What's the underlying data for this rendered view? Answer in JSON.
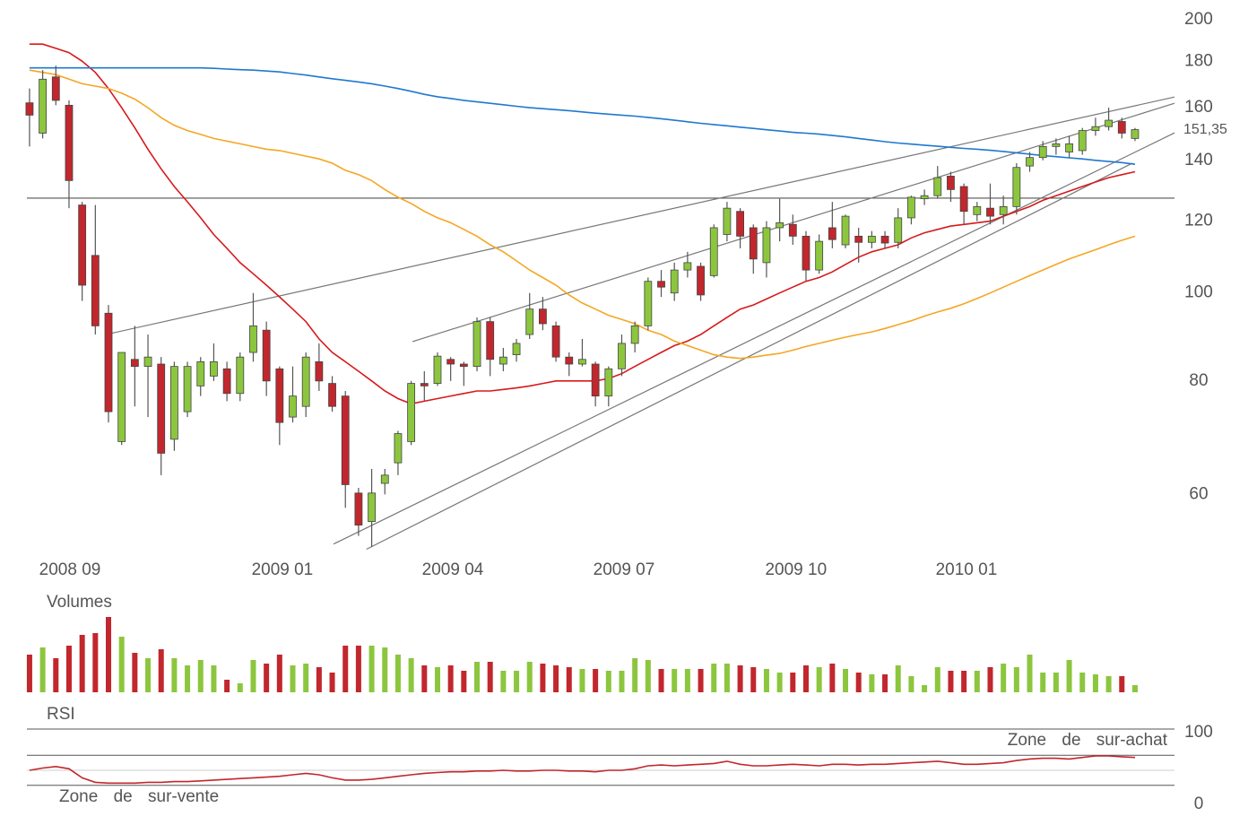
{
  "chart_data": [
    {
      "type": "candlestick",
      "log_scale": true,
      "grid": false,
      "up_color": "#8cc63e",
      "down_color": "#c1272d",
      "open": [
        162,
        150,
        173,
        161,
        125,
        110,
        95,
        68.6,
        84.5,
        83,
        83.5,
        69,
        74,
        79,
        81,
        82.5,
        77.5,
        86,
        91,
        82.5,
        73,
        75,
        84,
        79.5,
        77,
        60.2,
        56,
        61.7,
        65,
        68.6,
        79.5,
        79.5,
        84.5,
        83.5,
        83,
        93,
        83.5,
        85.5,
        90,
        96,
        92,
        85,
        83.5,
        83.5,
        77,
        82.5,
        88,
        92,
        103,
        100,
        106,
        107,
        104.5,
        116,
        123,
        118,
        108,
        118,
        119,
        115.5,
        106,
        118,
        113,
        115.5,
        113.7,
        115.5,
        113.7,
        121,
        127,
        128,
        134.5,
        131,
        122,
        124,
        122,
        124.5,
        138,
        141,
        145,
        143,
        143.5,
        151,
        152.5,
        154.5,
        148
      ],
      "high": [
        168,
        176,
        178,
        163,
        126,
        125,
        97,
        86,
        92,
        90,
        85,
        84,
        84,
        85,
        88,
        84,
        86,
        100,
        93,
        83,
        83,
        86,
        88,
        81,
        78,
        61,
        64,
        64,
        70.5,
        80,
        82,
        86,
        85,
        84,
        94,
        94,
        87,
        89,
        100,
        99,
        93,
        86,
        89,
        84,
        83,
        90,
        93,
        104,
        106,
        108,
        111,
        108,
        119,
        126,
        124,
        119,
        120,
        127,
        122,
        117,
        116,
        126,
        122,
        118,
        117,
        117,
        124,
        128,
        130,
        138,
        136,
        132,
        126,
        132,
        128,
        139,
        143,
        147,
        148,
        149,
        152,
        156,
        160,
        156,
        152
      ],
      "low": [
        145,
        148,
        161,
        124,
        98,
        90,
        72,
        68,
        75,
        73,
        63,
        67,
        73,
        77,
        80,
        76,
        76,
        84,
        77,
        68,
        72,
        73,
        78,
        74,
        58,
        54,
        52.5,
        60,
        63,
        68,
        76,
        79,
        80,
        79,
        82,
        81,
        82,
        84,
        89,
        91,
        84,
        81,
        83,
        75,
        75,
        81,
        86,
        91,
        99,
        98,
        104,
        98,
        104,
        114,
        112,
        105,
        104,
        114,
        113,
        103,
        105,
        112,
        112,
        108,
        112,
        112,
        112,
        119,
        125,
        127,
        126,
        119,
        120,
        119,
        119,
        122,
        136,
        140,
        142,
        141,
        142,
        149,
        151,
        148,
        147
      ],
      "close": [
        157,
        172,
        163,
        133,
        102,
        92,
        74,
        86,
        83,
        85,
        66.6,
        83,
        83,
        84,
        84,
        77.5,
        85,
        92,
        80,
        72,
        77,
        85,
        80,
        75,
        61.5,
        55.5,
        60.2,
        63,
        70,
        79.5,
        79,
        85.2,
        83.5,
        83,
        93,
        84.5,
        85,
        88,
        96,
        92.5,
        85,
        83.5,
        84.5,
        77,
        82.5,
        88,
        92,
        103,
        101.5,
        106,
        108,
        99.5,
        118,
        124,
        115.5,
        109,
        118,
        119.5,
        115.5,
        106,
        114,
        114.5,
        121.5,
        113.7,
        115.5,
        113.5,
        121,
        127.5,
        128,
        134,
        130,
        123,
        124.5,
        121.5,
        124.5,
        137.5,
        141,
        145,
        146,
        146,
        151,
        152.5,
        155,
        150,
        151.35
      ],
      "series": [
        {
          "color": "#d7191c",
          "values": [
            188,
            188,
            186,
            184,
            180,
            175,
            168,
            160,
            152,
            144,
            137,
            131,
            126,
            121,
            116,
            112,
            108,
            105,
            102,
            99,
            96,
            93,
            89,
            86,
            84,
            82,
            80,
            78,
            76.5,
            75.5,
            76,
            76.5,
            77,
            77.5,
            78,
            78,
            78.3,
            78.6,
            79,
            79.5,
            80,
            80,
            80,
            80,
            80.5,
            81.5,
            83,
            84.5,
            86,
            87.5,
            88.5,
            90,
            92,
            94,
            96,
            97,
            98.5,
            100,
            101.5,
            103,
            104,
            105.5,
            107.5,
            109.5,
            111,
            112,
            113,
            115,
            116.5,
            117.5,
            118.5,
            119,
            119.5,
            120,
            121.5,
            123,
            124.5,
            126.5,
            128,
            129.5,
            131,
            132.5,
            134,
            135,
            136
          ]
        },
        {
          "color": "#f5a623",
          "values": [
            176,
            175,
            174,
            172,
            170,
            169,
            168,
            166,
            163.5,
            160,
            156,
            153,
            151,
            149.5,
            148,
            147,
            146,
            145,
            144,
            143.5,
            142.5,
            141.5,
            140.5,
            139,
            136.5,
            135,
            133,
            130,
            127.5,
            125.5,
            123,
            121,
            119.5,
            117.5,
            115.5,
            113,
            111,
            108.5,
            106,
            104,
            102,
            99.5,
            97.5,
            96,
            94.5,
            93.5,
            92.5,
            91,
            90,
            88.5,
            87.5,
            86.5,
            85.5,
            85,
            84.7,
            85,
            85.4,
            85.8,
            86.5,
            87.3,
            88,
            88.7,
            89.4,
            90,
            90.6,
            91.4,
            92.3,
            93.2,
            94.3,
            95.3,
            96.2,
            97.3,
            98.6,
            100,
            101.5,
            103,
            104.5,
            106,
            107.5,
            109,
            110.3,
            111.6,
            113,
            114.3,
            115.5
          ]
        },
        {
          "color": "#1f78d1",
          "values": [
            177,
            177,
            177,
            177,
            177,
            177,
            177,
            177,
            177,
            177,
            177,
            177,
            177,
            177,
            176.8,
            176.5,
            176.2,
            176,
            175.6,
            175.2,
            174.5,
            173.8,
            173,
            172.2,
            171.5,
            170.8,
            170,
            169,
            168,
            166.8,
            165.5,
            164.5,
            163.8,
            163,
            162.4,
            161.8,
            161.2,
            160.6,
            160,
            159.6,
            159.2,
            158.8,
            158.3,
            157.8,
            157.4,
            157,
            156.6,
            156.1,
            155.6,
            155,
            154.4,
            153.8,
            153.3,
            152.8,
            152.3,
            151.8,
            151.3,
            150.8,
            150.3,
            150,
            149.6,
            149.1,
            148.6,
            148,
            147.4,
            146.8,
            146.3,
            145.9,
            145.5,
            145.1,
            144.7,
            144.3,
            144,
            143.6,
            143.2,
            142.7,
            142.2,
            141.7,
            141.3,
            140.9,
            140.5,
            140,
            139.6,
            139.2,
            138.6
          ]
        }
      ],
      "trendlines": [
        {
          "color": "#555555",
          "x": [
            -0.2,
            87
          ],
          "values": [
            127.2,
            127.2
          ]
        },
        {
          "color": "#777777",
          "x": [
            5.8,
            87
          ],
          "values": [
            90,
            164.4
          ]
        },
        {
          "color": "#777777",
          "x": [
            29.1,
            87
          ],
          "values": [
            88.4,
            161.8
          ]
        },
        {
          "color": "#777777",
          "x": [
            23.1,
            87
          ],
          "values": [
            52.9,
            150.1
          ]
        },
        {
          "color": "#777777",
          "x": [
            25.6,
            83.8
          ],
          "values": [
            52.2,
            139
          ]
        }
      ],
      "last_price": {
        "value": 151.35,
        "label": "151,35"
      },
      "xlim": [
        -0.2,
        87
      ],
      "xticks": [
        {
          "value": 3.07,
          "label": "2008 09"
        },
        {
          "value": 19.21,
          "label": "2009 01"
        },
        {
          "value": 32.16,
          "label": "2009 04"
        },
        {
          "value": 45.17,
          "label": "2009 07"
        },
        {
          "value": 58.24,
          "label": "2009 10"
        },
        {
          "value": 71.19,
          "label": "2010 01"
        }
      ],
      "ylim": [
        52.5,
        200
      ],
      "yticks": [
        60,
        80,
        100,
        120,
        140,
        160,
        180,
        200
      ]
    },
    {
      "type": "bar",
      "title": "Volumes",
      "values": [
        42,
        50,
        38,
        52,
        64,
        66,
        84,
        62,
        44,
        38,
        48,
        38,
        30,
        36,
        30,
        14,
        10,
        36,
        32,
        42,
        30,
        32,
        28,
        22,
        52,
        52,
        52,
        50,
        42,
        38,
        30,
        28,
        30,
        24,
        34,
        34,
        24,
        24,
        34,
        32,
        30,
        28,
        26,
        26,
        24,
        24,
        38,
        36,
        26,
        26,
        26,
        26,
        32,
        32,
        30,
        28,
        26,
        22,
        22,
        30,
        28,
        32,
        26,
        22,
        20,
        20,
        30,
        18,
        8,
        28,
        24,
        24,
        24,
        28,
        32,
        28,
        42,
        22,
        22,
        36,
        22,
        20,
        18,
        18,
        8
      ]
    },
    {
      "type": "line",
      "title": "RSI",
      "color": "#c1272d",
      "values": [
        50,
        53,
        55,
        52,
        40,
        34,
        33,
        33,
        33,
        34,
        34,
        35,
        35,
        36,
        37,
        38,
        39,
        40,
        41,
        42,
        44,
        46,
        44,
        40,
        37,
        37,
        38,
        40,
        42,
        44,
        46,
        47,
        48,
        48,
        49,
        49,
        50,
        49,
        49,
        50,
        50,
        49,
        49,
        48,
        50,
        50,
        52,
        56,
        57,
        56,
        57,
        58,
        59,
        62,
        58,
        56,
        56,
        57,
        58,
        57,
        56,
        58,
        58,
        57,
        58,
        58,
        59,
        60,
        61,
        62,
        60,
        58,
        58,
        59,
        60,
        63,
        65,
        66,
        66,
        65,
        67,
        69,
        69,
        68,
        67
      ],
      "ylim": [
        0,
        100
      ],
      "yticks": [
        0,
        100
      ],
      "levels": [
        30,
        50,
        70
      ],
      "annotations": [
        "Zone de sur-achat",
        "Zone de sur-vente"
      ]
    }
  ]
}
